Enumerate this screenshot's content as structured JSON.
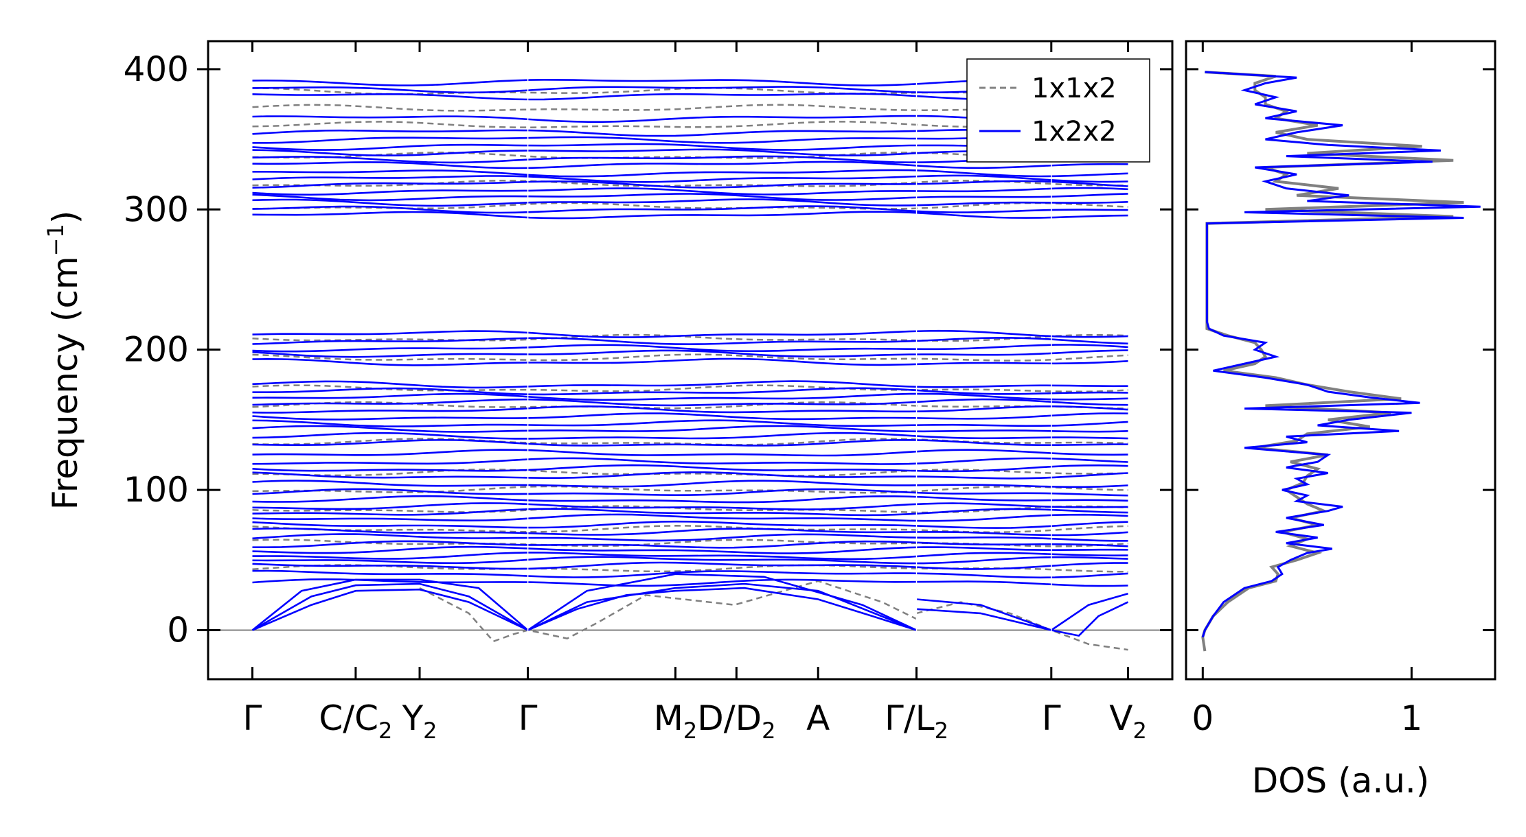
{
  "colors": {
    "primary": "#0000ff",
    "reference": "#808080",
    "zero_line": "#808080"
  },
  "chart_data": [
    {
      "type": "line",
      "subtype": "phonon-band-structure",
      "ylabel": "Frequency (cm",
      "ylabel_sup": "−1",
      "ylabel_close": ")",
      "ylim": [
        -35,
        420
      ],
      "yticks": [
        0,
        100,
        200,
        300,
        400
      ],
      "grid": false,
      "legend": {
        "placement": "top-right",
        "entries": [
          {
            "label": "1x1x2",
            "style": "dashed",
            "color": "#808080"
          },
          {
            "label": "1x2x2",
            "style": "solid",
            "color": "#0000ff"
          }
        ]
      },
      "xlim": [
        -0.45,
        9.35
      ],
      "high_symmetry_points": [
        {
          "x": 0,
          "main": "Γ",
          "sub": ""
        },
        {
          "x": 1.05,
          "main": "C/C",
          "sub": "2"
        },
        {
          "x": 1.7,
          "main": "Y",
          "sub": "2"
        },
        {
          "x": 2.8,
          "main": "Γ",
          "sub": ""
        },
        {
          "x": 4.3,
          "main": "M",
          "sub": "2"
        },
        {
          "x": 4.92,
          "main": "D/D",
          "sub": "2"
        },
        {
          "x": 5.75,
          "main": "A",
          "sub": ""
        },
        {
          "x": 6.75,
          "main": "Γ/L",
          "sub": "2"
        },
        {
          "x": 8.12,
          "main": "Γ",
          "sub": ""
        },
        {
          "x": 8.9,
          "main": "V",
          "sub": "2"
        }
      ],
      "segment_breaks": [
        2.8,
        6.75,
        8.12
      ],
      "acoustic_1x2x2": [
        [
          [
            0,
            0
          ],
          [
            0.6,
            18
          ],
          [
            1.05,
            28
          ],
          [
            1.7,
            29
          ],
          [
            2.2,
            20
          ],
          [
            2.8,
            0
          ],
          [
            3.3,
            15
          ],
          [
            3.8,
            25
          ],
          [
            4.3,
            28
          ],
          [
            5.0,
            30
          ],
          [
            5.75,
            22
          ],
          [
            6.3,
            10
          ],
          [
            6.75,
            0
          ]
        ],
        [
          [
            0,
            0
          ],
          [
            0.6,
            24
          ],
          [
            1.05,
            32
          ],
          [
            1.7,
            33
          ],
          [
            2.2,
            24
          ],
          [
            2.8,
            0
          ],
          [
            3.4,
            20
          ],
          [
            4.3,
            30
          ],
          [
            5.0,
            33
          ],
          [
            5.75,
            28
          ],
          [
            6.75,
            0
          ]
        ],
        [
          [
            0,
            0
          ],
          [
            0.5,
            28
          ],
          [
            1.05,
            36
          ],
          [
            1.7,
            36
          ],
          [
            2.3,
            30
          ],
          [
            2.8,
            0
          ],
          [
            3.4,
            28
          ],
          [
            4.3,
            40
          ],
          [
            5.2,
            38
          ],
          [
            6.2,
            18
          ],
          [
            6.75,
            0
          ]
        ],
        [
          [
            6.75,
            15
          ],
          [
            7.4,
            12
          ],
          [
            8.12,
            0
          ],
          [
            8.4,
            -4
          ],
          [
            8.6,
            10
          ],
          [
            8.9,
            20
          ]
        ],
        [
          [
            6.75,
            22
          ],
          [
            7.4,
            18
          ],
          [
            8.12,
            0
          ],
          [
            8.5,
            18
          ],
          [
            8.9,
            26
          ]
        ]
      ],
      "acoustic_1x1x2": [
        [
          [
            1.7,
            30
          ],
          [
            2.2,
            12
          ],
          [
            2.45,
            -8
          ],
          [
            2.65,
            -3
          ],
          [
            2.8,
            0
          ],
          [
            3.0,
            -3
          ],
          [
            3.2,
            -6
          ],
          [
            3.5,
            5
          ],
          [
            4.0,
            25
          ],
          [
            4.9,
            18
          ],
          [
            5.75,
            35
          ],
          [
            6.4,
            20
          ],
          [
            6.75,
            8
          ]
        ],
        [
          [
            6.75,
            12
          ],
          [
            7.2,
            20
          ],
          [
            7.7,
            12
          ],
          [
            8.12,
            0
          ],
          [
            8.5,
            -10
          ],
          [
            8.9,
            -14
          ]
        ]
      ],
      "flat_bands_1x2x2": [
        34,
        40,
        46,
        50,
        53,
        57,
        61,
        66,
        70,
        75,
        80,
        84,
        88,
        93,
        98,
        104,
        110,
        115,
        120,
        126,
        133,
        138,
        143,
        147,
        152,
        157,
        162,
        166,
        170,
        175,
        191,
        197,
        201,
        206,
        211,
        296,
        300,
        305,
        309,
        313,
        318,
        322,
        326,
        332,
        336,
        341,
        345,
        350,
        355,
        365,
        381,
        386,
        391
      ],
      "flat_bands_1x1x2": [
        44,
        62,
        72,
        86,
        100,
        112,
        134,
        160,
        172,
        194,
        208,
        302,
        318,
        338,
        360,
        372,
        384
      ],
      "dos_xlabel": "DOS (a.u.)",
      "dos_xlim": [
        -0.08,
        1.4
      ],
      "dos_xticks": [
        0,
        1
      ],
      "dos_1x2x2": [
        [
          -5,
          0
        ],
        [
          0,
          0.01
        ],
        [
          10,
          0.05
        ],
        [
          20,
          0.1
        ],
        [
          30,
          0.2
        ],
        [
          35,
          0.33
        ],
        [
          40,
          0.38
        ],
        [
          45,
          0.36
        ],
        [
          50,
          0.42
        ],
        [
          55,
          0.5
        ],
        [
          58,
          0.62
        ],
        [
          62,
          0.4
        ],
        [
          66,
          0.55
        ],
        [
          70,
          0.35
        ],
        [
          75,
          0.58
        ],
        [
          80,
          0.4
        ],
        [
          85,
          0.6
        ],
        [
          88,
          0.67
        ],
        [
          92,
          0.45
        ],
        [
          96,
          0.5
        ],
        [
          100,
          0.38
        ],
        [
          104,
          0.5
        ],
        [
          108,
          0.45
        ],
        [
          112,
          0.6
        ],
        [
          116,
          0.4
        ],
        [
          120,
          0.55
        ],
        [
          125,
          0.6
        ],
        [
          130,
          0.2
        ],
        [
          134,
          0.5
        ],
        [
          138,
          0.4
        ],
        [
          142,
          0.94
        ],
        [
          146,
          0.55
        ],
        [
          150,
          0.7
        ],
        [
          155,
          1.0
        ],
        [
          158,
          0.2
        ],
        [
          162,
          1.04
        ],
        [
          166,
          0.8
        ],
        [
          170,
          0.6
        ],
        [
          175,
          0.5
        ],
        [
          180,
          0.3
        ],
        [
          185,
          0.05
        ],
        [
          190,
          0.2
        ],
        [
          195,
          0.35
        ],
        [
          200,
          0.25
        ],
        [
          205,
          0.3
        ],
        [
          210,
          0.1
        ],
        [
          215,
          0.03
        ],
        [
          220,
          0.02
        ],
        [
          250,
          0.02
        ],
        [
          290,
          0.02
        ],
        [
          294,
          1.25
        ],
        [
          298,
          0.2
        ],
        [
          302,
          1.33
        ],
        [
          306,
          0.5
        ],
        [
          310,
          0.7
        ],
        [
          315,
          0.4
        ],
        [
          320,
          0.3
        ],
        [
          325,
          0.45
        ],
        [
          330,
          0.25
        ],
        [
          334,
          1.1
        ],
        [
          338,
          0.4
        ],
        [
          342,
          1.14
        ],
        [
          346,
          0.6
        ],
        [
          350,
          0.3
        ],
        [
          355,
          0.45
        ],
        [
          360,
          0.67
        ],
        [
          365,
          0.3
        ],
        [
          370,
          0.45
        ],
        [
          375,
          0.25
        ],
        [
          380,
          0.35
        ],
        [
          385,
          0.2
        ],
        [
          390,
          0.3
        ],
        [
          394,
          0.45
        ],
        [
          398,
          0.01
        ]
      ],
      "dos_1x1x2": [
        [
          -15,
          0.01
        ],
        [
          -5,
          0.0
        ],
        [
          0,
          0.01
        ],
        [
          10,
          0.05
        ],
        [
          20,
          0.12
        ],
        [
          30,
          0.22
        ],
        [
          35,
          0.35
        ],
        [
          40,
          0.36
        ],
        [
          45,
          0.33
        ],
        [
          50,
          0.45
        ],
        [
          55,
          0.55
        ],
        [
          60,
          0.42
        ],
        [
          65,
          0.5
        ],
        [
          70,
          0.38
        ],
        [
          75,
          0.55
        ],
        [
          80,
          0.42
        ],
        [
          85,
          0.58
        ],
        [
          90,
          0.5
        ],
        [
          95,
          0.45
        ],
        [
          100,
          0.4
        ],
        [
          105,
          0.48
        ],
        [
          110,
          0.5
        ],
        [
          115,
          0.55
        ],
        [
          120,
          0.42
        ],
        [
          125,
          0.6
        ],
        [
          130,
          0.25
        ],
        [
          135,
          0.45
        ],
        [
          140,
          0.5
        ],
        [
          145,
          0.8
        ],
        [
          150,
          0.6
        ],
        [
          155,
          0.9
        ],
        [
          160,
          0.3
        ],
        [
          165,
          0.95
        ],
        [
          170,
          0.7
        ],
        [
          175,
          0.5
        ],
        [
          180,
          0.35
        ],
        [
          185,
          0.1
        ],
        [
          190,
          0.25
        ],
        [
          195,
          0.3
        ],
        [
          200,
          0.28
        ],
        [
          205,
          0.25
        ],
        [
          210,
          0.12
        ],
        [
          215,
          0.02
        ],
        [
          250,
          0.02
        ],
        [
          290,
          0.02
        ],
        [
          295,
          1.2
        ],
        [
          300,
          0.3
        ],
        [
          305,
          1.25
        ],
        [
          310,
          0.45
        ],
        [
          315,
          0.65
        ],
        [
          320,
          0.35
        ],
        [
          325,
          0.4
        ],
        [
          330,
          0.3
        ],
        [
          335,
          1.2
        ],
        [
          340,
          0.5
        ],
        [
          345,
          1.05
        ],
        [
          350,
          0.5
        ],
        [
          355,
          0.35
        ],
        [
          360,
          0.55
        ],
        [
          365,
          0.35
        ],
        [
          370,
          0.4
        ],
        [
          375,
          0.3
        ],
        [
          380,
          0.3
        ],
        [
          385,
          0.25
        ],
        [
          390,
          0.25
        ],
        [
          395,
          0.35
        ],
        [
          398,
          0.01
        ]
      ]
    }
  ]
}
